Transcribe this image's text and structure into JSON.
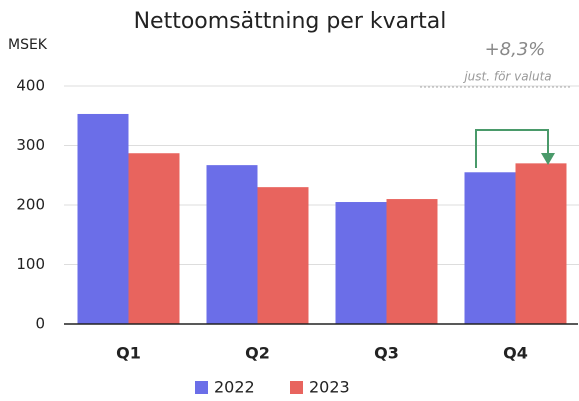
{
  "chart_data": {
    "type": "bar",
    "title": "Nettoomsättning per kvartal",
    "y_label": "MSEK",
    "annotation": "+8,3%",
    "annotation_note": "just. för valuta",
    "categories": [
      "Q1",
      "Q2",
      "Q3",
      "Q4"
    ],
    "series": [
      {
        "name": "2022",
        "color": "#6b6ee8",
        "values": [
          353,
          267,
          205,
          255
        ]
      },
      {
        "name": "2023",
        "color": "#e8645e",
        "values": [
          287,
          230,
          210,
          270
        ]
      }
    ],
    "ylim": [
      0,
      400
    ],
    "yticks": [
      0,
      100,
      200,
      300,
      400
    ],
    "grid": true
  }
}
